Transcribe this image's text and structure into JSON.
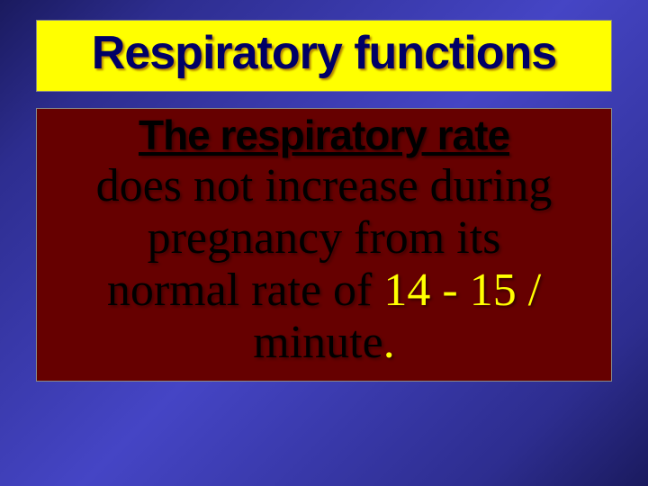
{
  "slide": {
    "background_gradient": [
      "#1a1a5e",
      "#2d2d8f",
      "#4545c5",
      "#2d2d8f",
      "#1a1a5e"
    ],
    "title": {
      "text": "Respiratory functions",
      "box_bg": "#ffff00",
      "text_color": "#000066",
      "font_family": "Arial",
      "font_weight": "bold",
      "font_size_pt": 40
    },
    "body": {
      "box_bg": "#660000",
      "subheading": {
        "text": "The respiratory rate",
        "color": "#000000",
        "underline": true,
        "font_family": "Arial",
        "font_weight": "bold",
        "font_size_pt": 34
      },
      "line1": "does not increase during",
      "line2": "pregnancy from its",
      "line3_a": "normal rate of ",
      "line3_hl": "14 - 15 /",
      "line4_a": "minute",
      "line4_hl": ".",
      "body_color": "#000000",
      "highlight_color": "#ffff00",
      "font_family": "Times New Roman",
      "font_size_pt": 40
    }
  }
}
